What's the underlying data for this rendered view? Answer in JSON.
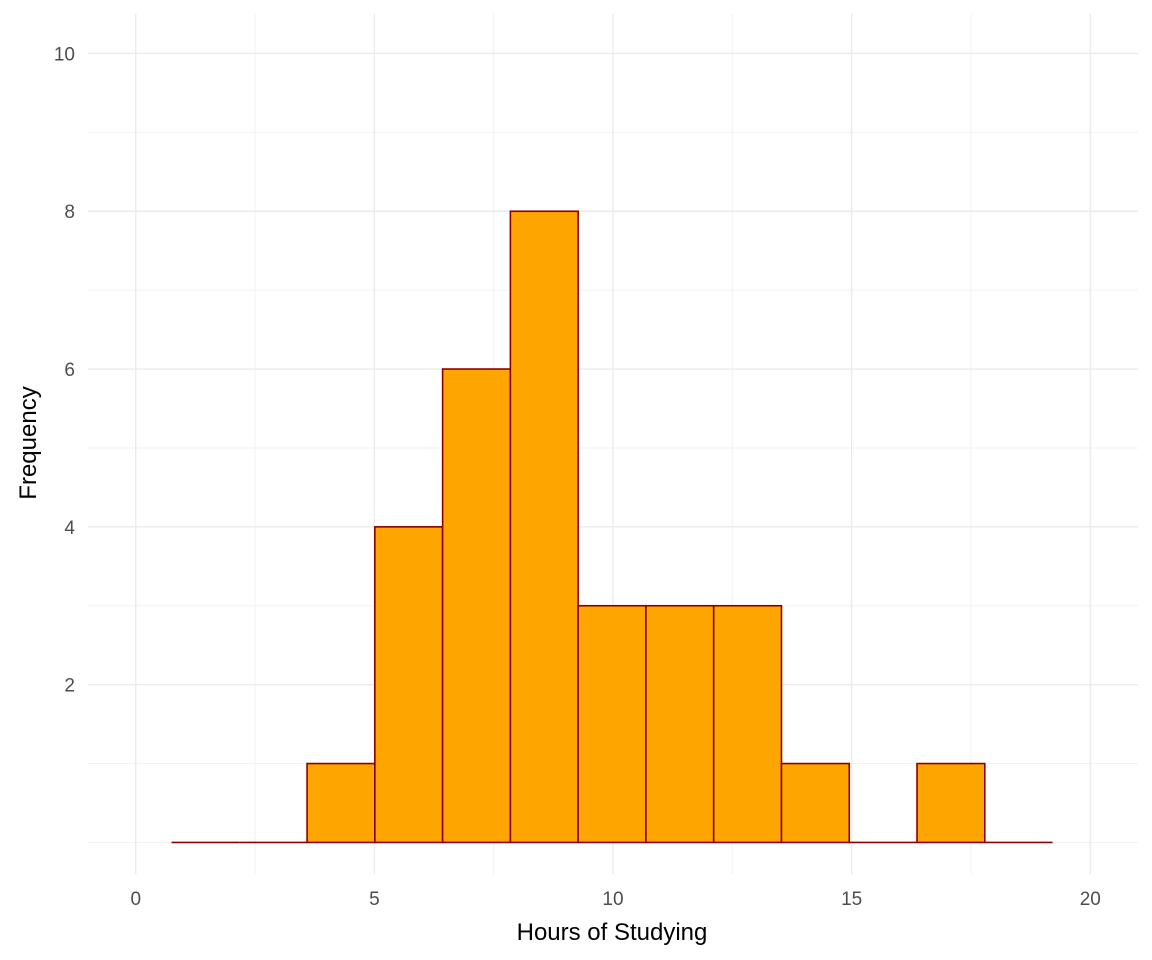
{
  "chart_data": {
    "type": "bar",
    "xlabel": "Hours of Studying",
    "ylabel": "Frequency",
    "xlim": [
      -1.0,
      21.0
    ],
    "ylim": [
      -0.4,
      10.5
    ],
    "x_ticks": [
      0,
      5,
      10,
      15,
      20
    ],
    "x_tick_labels": [
      "0",
      "5",
      "10",
      "15",
      "20"
    ],
    "y_ticks": [
      2,
      4,
      6,
      8,
      10
    ],
    "y_tick_labels": [
      "2",
      "4",
      "6",
      "8",
      "10"
    ],
    "x_minor_ticks": [
      2.5,
      7.5,
      12.5,
      17.5
    ],
    "y_minor_ticks": [
      0,
      1,
      3,
      5,
      7,
      9
    ],
    "grid": true,
    "bins": [
      {
        "x0": 0.75,
        "x1": 2.17,
        "count": 0
      },
      {
        "x0": 2.17,
        "x1": 3.59,
        "count": 0
      },
      {
        "x0": 3.59,
        "x1": 5.01,
        "count": 1
      },
      {
        "x0": 5.01,
        "x1": 6.43,
        "count": 4
      },
      {
        "x0": 6.43,
        "x1": 7.85,
        "count": 6
      },
      {
        "x0": 7.85,
        "x1": 9.27,
        "count": 8
      },
      {
        "x0": 9.27,
        "x1": 10.69,
        "count": 3
      },
      {
        "x0": 10.69,
        "x1": 12.11,
        "count": 3
      },
      {
        "x0": 12.11,
        "x1": 13.53,
        "count": 3
      },
      {
        "x0": 13.53,
        "x1": 14.95,
        "count": 1
      },
      {
        "x0": 14.95,
        "x1": 16.37,
        "count": 0
      },
      {
        "x0": 16.37,
        "x1": 17.79,
        "count": 1
      },
      {
        "x0": 17.79,
        "x1": 19.21,
        "count": 0
      }
    ],
    "fill_color": "#FFA500",
    "outline_color": "#8B0000"
  }
}
